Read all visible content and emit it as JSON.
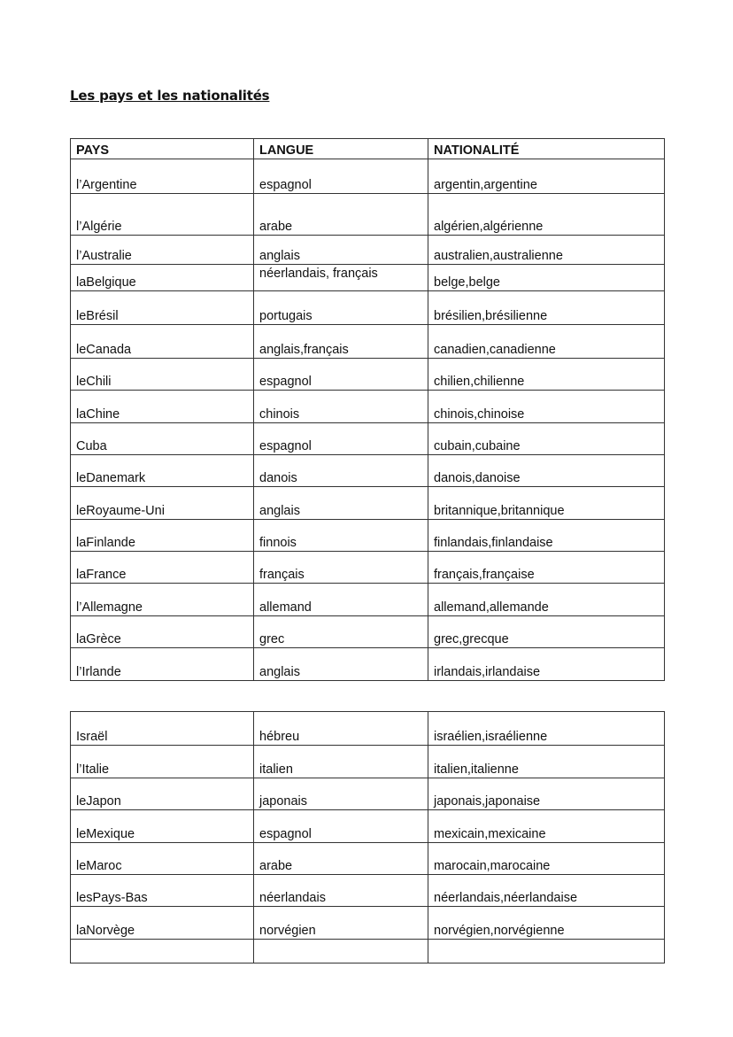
{
  "title": "Les pays et les nationalités",
  "table1": {
    "headers": [
      "PAYS",
      "LANGUE",
      "NATIONALITÉ"
    ],
    "rows": [
      [
        "l’Argentine",
        "espagnol",
        "argentin,argentine"
      ],
      [
        "l’Algérie",
        "arabe",
        "algérien,algérienne"
      ],
      [
        "l’Australie",
        "anglais",
        "australien,australienne"
      ],
      [
        "laBelgique",
        "néerlandais, français",
        "belge,belge"
      ],
      [
        "leBrésil",
        "portugais",
        "brésilien,brésilienne"
      ],
      [
        "leCanada",
        "anglais,français",
        "canadien,canadienne"
      ],
      [
        "leChili",
        "espagnol",
        "chilien,chilienne"
      ],
      [
        "laChine",
        "chinois",
        "chinois,chinoise"
      ],
      [
        "Cuba",
        "espagnol",
        "cubain,cubaine"
      ],
      [
        "leDanemark",
        "danois",
        "danois,danoise"
      ],
      [
        "leRoyaume-Uni",
        "anglais",
        "britannique,britannique"
      ],
      [
        "laFinlande",
        "finnois",
        "finlandais,finlandaise"
      ],
      [
        "laFrance",
        "français",
        "français,française"
      ],
      [
        "l’Allemagne",
        "allemand",
        "allemand,allemande"
      ],
      [
        "laGrèce",
        "grec",
        "grec,grecque"
      ],
      [
        "l’Irlande",
        "anglais",
        "irlandais,irlandaise"
      ]
    ]
  },
  "table2": {
    "rows": [
      [
        "Israël",
        "hébreu",
        "israélien,israélienne"
      ],
      [
        "l’Italie",
        "italien",
        "italien,italienne"
      ],
      [
        "leJapon",
        "japonais",
        "japonais,japonaise"
      ],
      [
        "leMexique",
        "espagnol",
        "mexicain,mexicaine"
      ],
      [
        "leMaroc",
        "arabe",
        "marocain,marocaine"
      ],
      [
        "lesPays-Bas",
        "néerlandais",
        "néerlandais,néerlandaise"
      ],
      [
        "laNorvège",
        "norvégien",
        "norvégien,norvégienne"
      ],
      [
        "",
        "",
        ""
      ]
    ]
  }
}
